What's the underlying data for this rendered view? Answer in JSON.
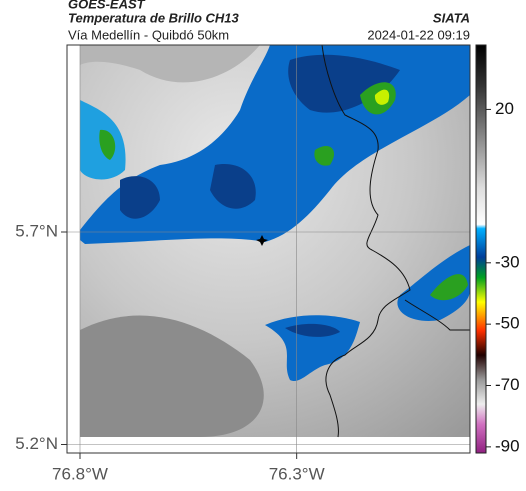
{
  "header": {
    "satellite": "GOES-EAST",
    "product": "Temperatura de Brillo CH13",
    "region": "Vía Medellín - Quibdó 50km",
    "source": "SIATA",
    "timestamp": "2024-01-22 09:19"
  },
  "map": {
    "xlim": [
      -76.83,
      -75.9
    ],
    "ylim": [
      5.18,
      6.14
    ],
    "xticks": [
      {
        "value": -76.8,
        "label": "76.8°W"
      },
      {
        "value": -76.3,
        "label": "76.3°W"
      }
    ],
    "yticks": [
      {
        "value": 5.7,
        "label": "5.7°N"
      },
      {
        "value": 5.2,
        "label": "5.2°N"
      }
    ],
    "grid": true
  },
  "colorbar": {
    "lim": [
      41,
      -92
    ],
    "ticks": [
      20,
      -30,
      -50,
      -70,
      -90
    ]
  }
}
